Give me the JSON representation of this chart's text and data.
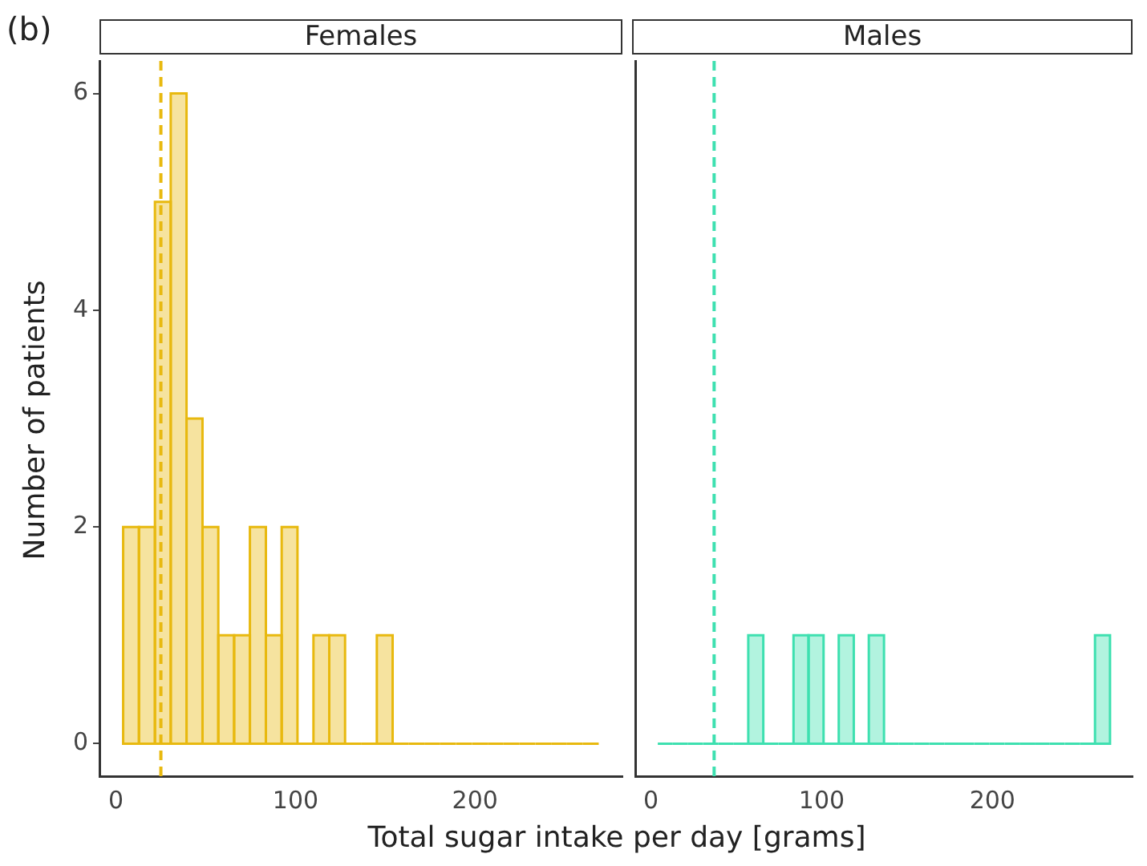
{
  "chart_data": [
    {
      "type": "histogram",
      "title": "Females",
      "ylabel": "Number of patients",
      "xlabel": "Total sugar intake per day [grams]",
      "annotations": [
        "(b)"
      ],
      "bins": [
        4.0,
        12.8,
        21.7,
        30.5,
        39.3,
        48.2,
        57.0,
        65.8,
        74.6,
        83.5,
        92.3,
        101.1,
        110.0,
        118.8,
        127.6,
        136.5,
        145.3,
        154.1,
        162.9,
        171.8,
        180.6,
        189.4,
        198.3,
        207.1,
        215.9,
        224.8,
        233.6,
        242.4,
        251.2,
        260.1,
        268.9
      ],
      "values": [
        2,
        2,
        5,
        6,
        3,
        2,
        1,
        1,
        2,
        1,
        2,
        0,
        1,
        1,
        0,
        0,
        1,
        0,
        0,
        0,
        0,
        0,
        0,
        0,
        0,
        0,
        0,
        0,
        0,
        0
      ],
      "color": "#e8b90f",
      "xlim": [
        -9.2,
        282.1
      ],
      "xticks": [
        0,
        100,
        200
      ],
      "ylim": [
        -0.3,
        6.3
      ],
      "yticks": [
        0,
        2,
        4,
        6
      ],
      "grid": false,
      "ref_lines": [
        {
          "axis": "x",
          "value": 25,
          "color": "#e8b90f",
          "line_style": "dashed"
        }
      ]
    },
    {
      "type": "histogram",
      "title": "Males",
      "bins": [
        4.0,
        12.8,
        21.7,
        30.5,
        39.3,
        48.2,
        57.0,
        65.8,
        74.6,
        83.5,
        92.3,
        101.1,
        110.0,
        118.8,
        127.6,
        136.5,
        145.3,
        154.1,
        162.9,
        171.8,
        180.6,
        189.4,
        198.3,
        207.1,
        215.9,
        224.8,
        233.6,
        242.4,
        251.2,
        260.1,
        268.9
      ],
      "values": [
        0,
        0,
        0,
        0,
        0,
        0,
        1,
        0,
        0,
        1,
        1,
        0,
        1,
        0,
        1,
        0,
        0,
        0,
        0,
        0,
        0,
        0,
        0,
        0,
        0,
        0,
        0,
        0,
        0,
        1
      ],
      "color": "#3ee0b0",
      "xlim": [
        -9.2,
        282.1
      ],
      "xticks": [
        0,
        100,
        200
      ],
      "ylim": [
        -0.3,
        6.3
      ],
      "yticks": [
        0,
        2,
        4,
        6
      ],
      "tick_labels": "x",
      "grid": false,
      "ref_lines": [
        {
          "axis": "x",
          "value": 37,
          "color": "#3ee0b0",
          "line_style": "dashed"
        }
      ]
    }
  ]
}
